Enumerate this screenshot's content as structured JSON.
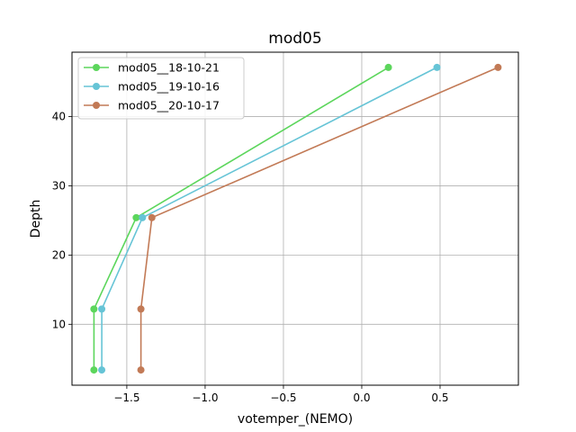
{
  "chart_data": {
    "type": "line",
    "title": "mod05",
    "xlabel": "votemper_(NEMO)",
    "ylabel": "Depth",
    "xlim": [
      -1.85,
      1.0
    ],
    "ylim": [
      1.2,
      49.3
    ],
    "xticks": [
      -1.5,
      -1.0,
      -0.5,
      0.0,
      0.5
    ],
    "xtick_labels": [
      "−1.5",
      "−1.0",
      "−0.5",
      "0.0",
      "0.5"
    ],
    "yticks": [
      10,
      20,
      30,
      40
    ],
    "ytick_labels": [
      "10",
      "20",
      "30",
      "40"
    ],
    "grid": true,
    "legend_position": "top-left",
    "series": [
      {
        "name": "mod05__18-10-21",
        "color": "#5cd65c",
        "x": [
          -1.71,
          -1.71,
          -1.44,
          0.17
        ],
        "y": [
          3.4,
          12.2,
          25.4,
          47.1
        ]
      },
      {
        "name": "mod05__19-10-16",
        "color": "#66c4d6",
        "x": [
          -1.66,
          -1.66,
          -1.4,
          0.48
        ],
        "y": [
          3.4,
          12.2,
          25.4,
          47.1
        ]
      },
      {
        "name": "mod05__20-10-17",
        "color": "#c27a56",
        "x": [
          -1.41,
          -1.41,
          -1.34,
          0.87
        ],
        "y": [
          3.4,
          12.2,
          25.4,
          47.1
        ]
      }
    ]
  }
}
